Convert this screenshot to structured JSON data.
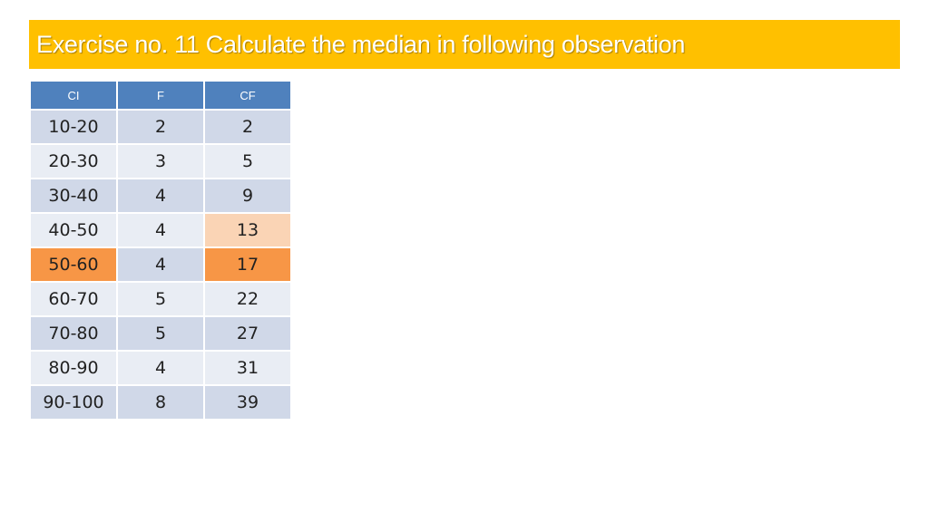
{
  "title": "Exercise no. 11 Calculate the median in following observation",
  "table": {
    "headers": [
      "CI",
      "F",
      "CF"
    ],
    "rows": [
      {
        "ci": "10-20",
        "f": "2",
        "cf": "2"
      },
      {
        "ci": "20-30",
        "f": "3",
        "cf": "5"
      },
      {
        "ci": "30-40",
        "f": "4",
        "cf": "9"
      },
      {
        "ci": "40-50",
        "f": "4",
        "cf": "13"
      },
      {
        "ci": "50-60",
        "f": "4",
        "cf": "17"
      },
      {
        "ci": "60-70",
        "f": "5",
        "cf": "22"
      },
      {
        "ci": "70-80",
        "f": "5",
        "cf": "27"
      },
      {
        "ci": "80-90",
        "f": "4",
        "cf": "31"
      },
      {
        "ci": "90-100",
        "f": "8",
        "cf": "39"
      }
    ]
  },
  "highlights": {
    "light": "#fad4b5",
    "strong": "#f79646",
    "header": "#4f81bd",
    "title_bg": "#ffc000"
  }
}
